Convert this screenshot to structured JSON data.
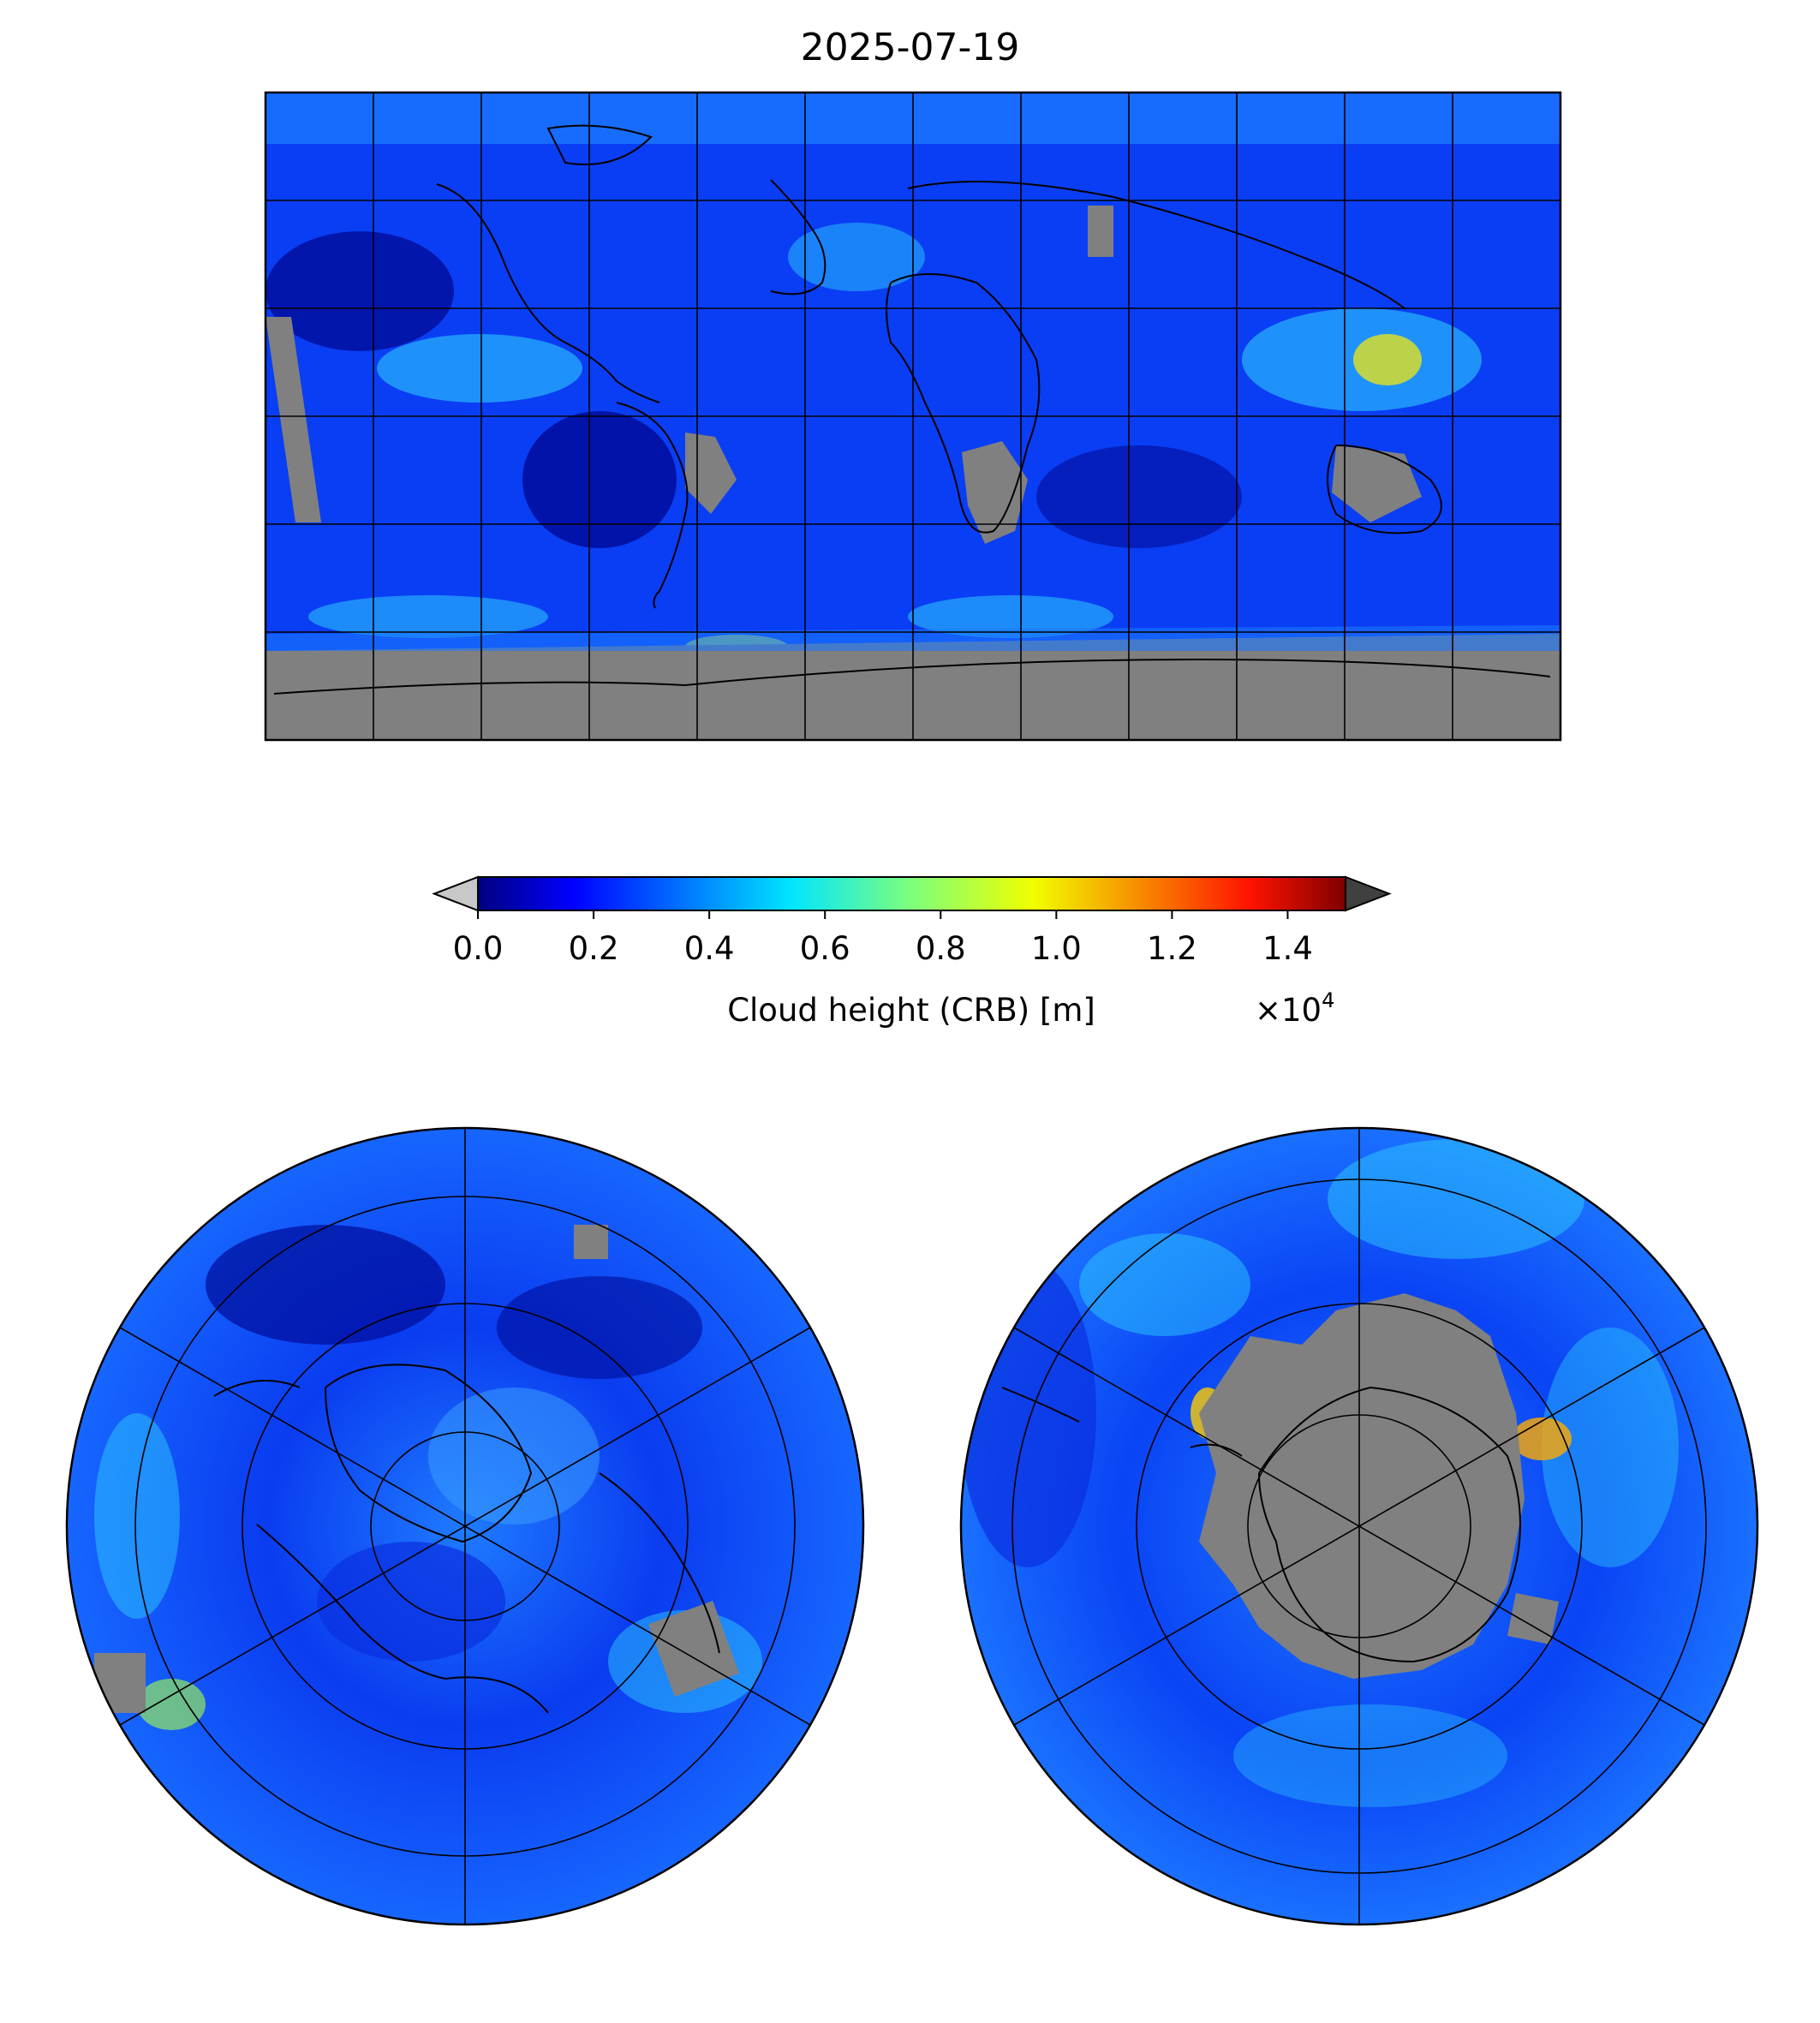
{
  "title": "2025-07-19",
  "colorbar": {
    "label": "Cloud height (CRB) [m]",
    "multiplier": "×10",
    "exponent": "4",
    "ticks": [
      "0.0",
      "0.2",
      "0.4",
      "0.6",
      "0.8",
      "1.0",
      "1.2",
      "1.4"
    ],
    "range": [
      0,
      1.5
    ],
    "colormap": "jet",
    "under_color": "#c8c8c8",
    "over_color": "#404040",
    "nodata_color": "#808080"
  },
  "panels": [
    {
      "kind": "global-map",
      "projection": "equirectangular",
      "gridline_spacing_deg": 30
    },
    {
      "kind": "polar-map",
      "hemisphere": "north",
      "gridline_spacing_deg": 60
    },
    {
      "kind": "polar-map",
      "hemisphere": "south",
      "gridline_spacing_deg": 60
    }
  ]
}
